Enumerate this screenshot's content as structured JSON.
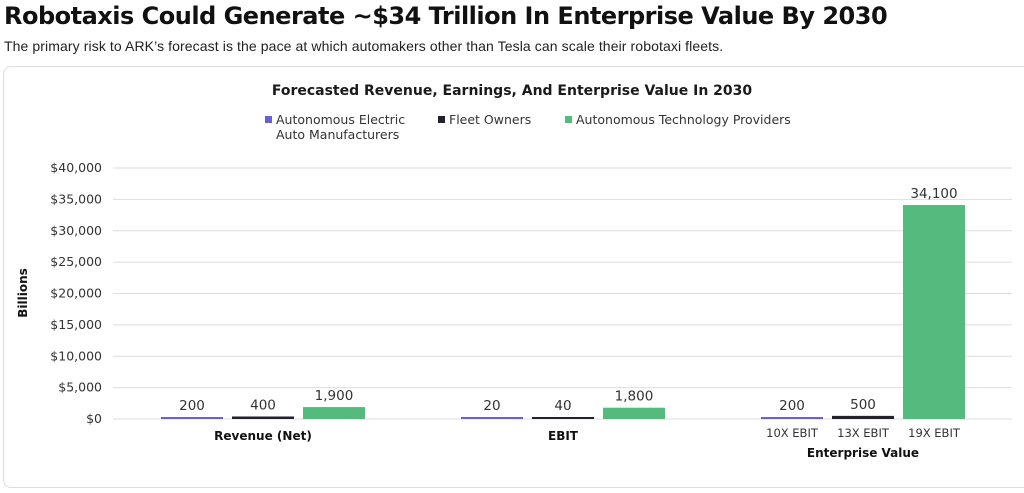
{
  "page": {
    "headline": "Robotaxis Could Generate ~$34 Trillion In Enterprise Value By 2030",
    "subheadline": "The primary risk to ARK’s forecast is the pace at which automakers other than Tesla can scale their robotaxi fleets."
  },
  "colors": {
    "auto_manufacturers": "#6a5fd8",
    "fleet_owners": "#22212e",
    "tech_providers": "#55bb7c",
    "grid": "#dedede",
    "text": "#333333"
  },
  "chart_data": {
    "type": "bar",
    "title": "Forecasted Revenue, Earnings, And Enterprise Value In 2030",
    "xlabel": "",
    "ylabel": "Billions",
    "ylim": [
      0,
      40000
    ],
    "yticks": [
      0,
      5000,
      10000,
      15000,
      20000,
      25000,
      30000,
      35000,
      40000
    ],
    "ytick_labels": [
      "$0",
      "$5,000",
      "$10,000",
      "$15,000",
      "$20,000",
      "$25,000",
      "$30,000",
      "$35,000",
      "$40,000"
    ],
    "grid": true,
    "legend_position": "top-center",
    "legend": [
      {
        "key": "auto_manufacturers",
        "label_lines": [
          "Autonomous Electric",
          "Auto Manufacturers"
        ]
      },
      {
        "key": "fleet_owners",
        "label_lines": [
          "Fleet Owners"
        ]
      },
      {
        "key": "tech_providers",
        "label_lines": [
          "Autonomous Technology Providers"
        ]
      }
    ],
    "groups": [
      {
        "label": "Revenue (Net)",
        "sublabels": [
          "",
          "",
          ""
        ]
      },
      {
        "label": "EBIT",
        "sublabels": [
          "",
          "",
          ""
        ]
      },
      {
        "label": "Enterprise Value",
        "sublabels": [
          "10X EBIT",
          "13X EBIT",
          "19X EBIT"
        ]
      }
    ],
    "series": [
      {
        "name": "Autonomous Electric Auto Manufacturers",
        "key": "auto_manufacturers",
        "values": [
          200,
          20,
          200
        ],
        "labels": [
          "200",
          "20",
          "200"
        ]
      },
      {
        "name": "Fleet Owners",
        "key": "fleet_owners",
        "values": [
          400,
          40,
          500
        ],
        "labels": [
          "400",
          "40",
          "500"
        ]
      },
      {
        "name": "Autonomous Technology Providers",
        "key": "tech_providers",
        "values": [
          1900,
          1800,
          34100
        ],
        "labels": [
          "1,900",
          "1,800",
          "34,100"
        ]
      }
    ]
  }
}
